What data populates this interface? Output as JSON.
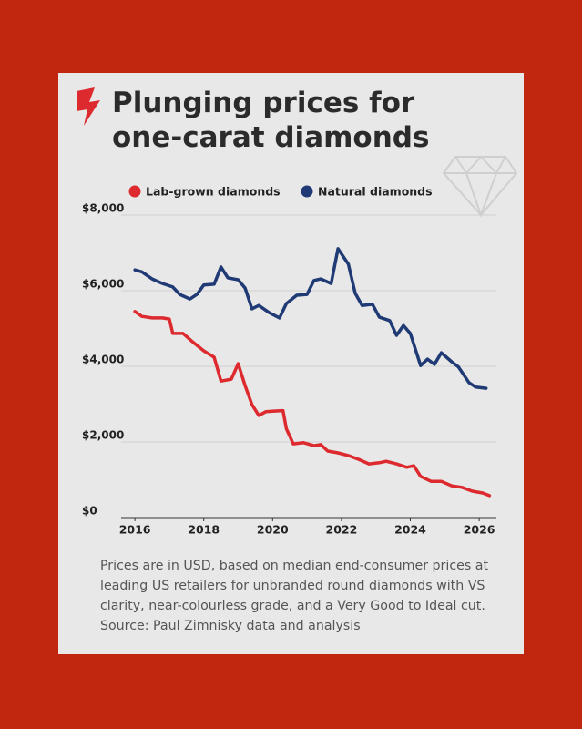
{
  "chart_data": {
    "type": "line",
    "title": "Plunging prices for one-carat diamonds",
    "note": "Prices are in USD, based on median end-consumer prices at leading US retailers for unbranded round diamonds with VS clarity, near-colourless grade, and a Very Good to Ideal cut. Source: Paul Zimnisky data and analysis",
    "series": [
      {
        "name": "Lab-grown diamonds",
        "color": "#dc2a2e",
        "x": [
          2016.0,
          2016.2,
          2016.5,
          2016.8,
          2017.0,
          2017.1,
          2017.4,
          2017.7,
          2018.0,
          2018.3,
          2018.5,
          2018.8,
          2019.0,
          2019.2,
          2019.4,
          2019.6,
          2019.8,
          2020.1,
          2020.3,
          2020.4,
          2020.6,
          2020.9,
          2021.2,
          2021.4,
          2021.6,
          2021.9,
          2022.2,
          2022.5,
          2022.8,
          2023.1,
          2023.3,
          2023.6,
          2023.9,
          2024.1,
          2024.3,
          2024.6,
          2024.9,
          2025.2,
          2025.5,
          2025.8,
          2026.1,
          2026.3
        ],
        "values": [
          5450,
          5320,
          5280,
          5280,
          5250,
          4870,
          4870,
          4630,
          4410,
          4240,
          3610,
          3660,
          4070,
          3490,
          2990,
          2700,
          2800,
          2820,
          2830,
          2350,
          1950,
          1980,
          1900,
          1930,
          1760,
          1710,
          1640,
          1540,
          1420,
          1450,
          1490,
          1420,
          1330,
          1370,
          1090,
          960,
          960,
          840,
          800,
          700,
          650,
          580
        ]
      },
      {
        "name": "Natural diamonds",
        "color": "#1f3a74",
        "x": [
          2016.0,
          2016.2,
          2016.5,
          2016.8,
          2017.1,
          2017.3,
          2017.6,
          2017.8,
          2018.0,
          2018.3,
          2018.5,
          2018.7,
          2019.0,
          2019.2,
          2019.4,
          2019.6,
          2019.9,
          2020.2,
          2020.4,
          2020.7,
          2021.0,
          2021.2,
          2021.4,
          2021.7,
          2021.9,
          2022.2,
          2022.4,
          2022.6,
          2022.9,
          2023.1,
          2023.4,
          2023.6,
          2023.8,
          2024.0,
          2024.3,
          2024.5,
          2024.7,
          2024.9,
          2025.2,
          2025.4,
          2025.7,
          2025.9,
          2026.2
        ],
        "values": [
          6550,
          6500,
          6310,
          6190,
          6100,
          5900,
          5780,
          5900,
          6150,
          6170,
          6630,
          6340,
          6290,
          6070,
          5520,
          5610,
          5420,
          5280,
          5660,
          5880,
          5900,
          6270,
          6310,
          6190,
          7110,
          6700,
          5930,
          5610,
          5640,
          5300,
          5210,
          4820,
          5080,
          4870,
          4020,
          4190,
          4050,
          4360,
          4120,
          3980,
          3570,
          3450,
          3420
        ]
      }
    ],
    "xlim": [
      2015.6,
      2026.5
    ],
    "xticks": [
      2016,
      2018,
      2020,
      2022,
      2024,
      2026
    ],
    "ylim": [
      0,
      8000
    ],
    "yticks": [
      {
        "value": 0,
        "label": "$0"
      },
      {
        "value": 2000,
        "label": "$2,000"
      },
      {
        "value": 4000,
        "label": "$4,000"
      },
      {
        "value": 6000,
        "label": "$6,000"
      },
      {
        "value": 8000,
        "label": "$8,000"
      }
    ],
    "grid": true
  }
}
